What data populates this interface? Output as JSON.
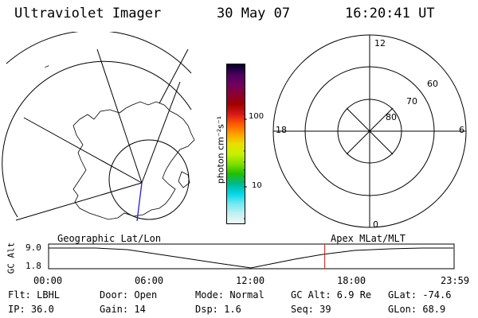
{
  "header": {
    "instrument": "Ultraviolet Imager",
    "date": "30 May 07",
    "time": "16:20:41 UT"
  },
  "colorbar": {
    "unit_label": "photon cm⁻²s⁻¹",
    "tick_100": "100",
    "tick_10": "10",
    "colors": [
      "#000030",
      "#4a005a",
      "#700060",
      "#8a0030",
      "#a00000",
      "#d81818",
      "#ff5a00",
      "#ffa000",
      "#e8e000",
      "#c8f000",
      "#80e000",
      "#20c000",
      "#00b890",
      "#00d8e8",
      "#70e8f0",
      "#c0f0f0",
      "#f0f8f8"
    ]
  },
  "polar_grid": {
    "mlt_top": "12",
    "mlt_bottom": "0",
    "mlt_left": "18",
    "mlt_right": "6",
    "lat_60": "60",
    "lat_70": "70",
    "lat_80": "80"
  },
  "timeline": {
    "axis_label": "GC Alt",
    "y_max": "9.0",
    "y_min": "1.8",
    "geo_label": "Geographic Lat/Lon",
    "apex_label": "Apex MLat/MLT",
    "times": [
      "00:00",
      "06:00",
      "12:00",
      "18:00",
      "23:59"
    ],
    "current_time_fraction": 0.681
  },
  "status": {
    "flt": "Flt: LBHL",
    "ip": "IP: 36.0",
    "door": "Door: Open",
    "gain": "Gain: 14",
    "mode": "Mode: Normal",
    "dsp": "Dsp:    1.6",
    "gc_alt": "GC Alt: 6.9 Re",
    "seq": "Seq: 39",
    "glat": "GLat: -74.6",
    "glon": "GLon:  68.9"
  }
}
